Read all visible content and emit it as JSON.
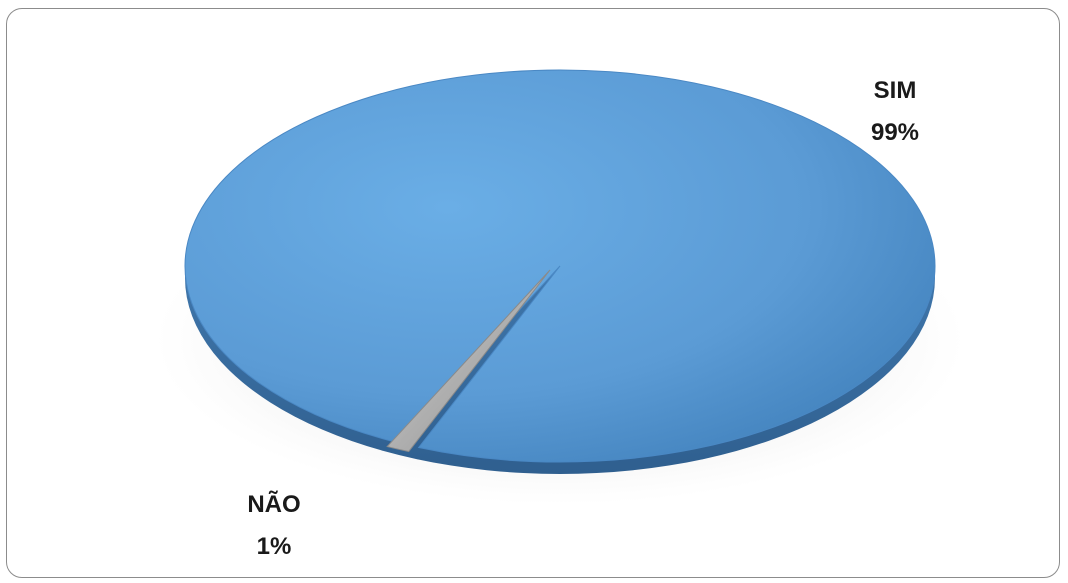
{
  "chart_data": {
    "type": "pie",
    "title": "",
    "slices": [
      {
        "label": "SIM",
        "value": 99,
        "display": "99%",
        "color": "#5b9bd5"
      },
      {
        "label": "NÃO",
        "value": 1,
        "display": "1%",
        "color": "#a6a6a6"
      }
    ],
    "style": "3d-exploded",
    "legend": "none"
  }
}
